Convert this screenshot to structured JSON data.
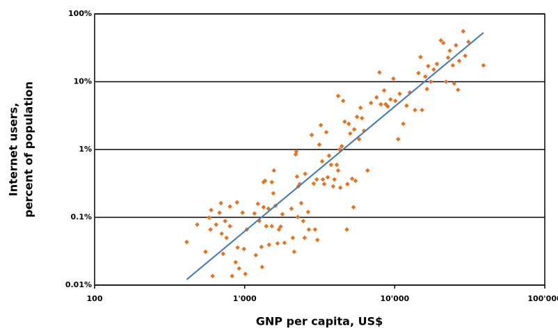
{
  "chart_data": {
    "type": "scatter",
    "xlabel": "GNP per capita, US$",
    "ylabel": [
      "Internet users,",
      "percent of population"
    ],
    "xscale": "log",
    "yscale": "log",
    "grid": true,
    "xlim": [
      100,
      100000
    ],
    "xticks": [
      100,
      {
        "value": 1000,
        "label": "1'000"
      },
      {
        "value": 10000,
        "label": "10'000"
      },
      {
        "value": 100000,
        "label": "100'000"
      }
    ],
    "ylim": [
      0.01,
      100
    ],
    "yticks": [
      {
        "value": 0.01,
        "label": "0.01%"
      },
      {
        "value": 0.1,
        "label": "0.1%"
      },
      {
        "value": 1,
        "label": "1%"
      },
      {
        "value": 10,
        "label": "10%"
      },
      {
        "value": 100,
        "label": "100%"
      }
    ],
    "series": [
      {
        "type": "scatter",
        "color": "#e8731f",
        "x": [
          411,
          483,
          549,
          579,
          592,
          598,
          611,
          645,
          680,
          695,
          703,
          718,
          741,
          757,
          798,
          798,
          825,
          871,
          889,
          898,
          918,
          968,
          989,
          1010,
          1033,
          1162,
          1187,
          1225,
          1252,
          1294,
          1307,
          1336,
          1336,
          1366,
          1393,
          1439,
          1455,
          1517,
          1517,
          1552,
          1567,
          1603,
          1656,
          1690,
          1738,
          1784,
          1842,
          2050,
          2093,
          2137,
          2187,
          2208,
          2233,
          2257,
          2281,
          2330,
          2382,
          2455,
          2510,
          2530,
          2649,
          2677,
          2799,
          2884,
          2945,
          3020,
          3054,
          3146,
          3219,
          3283,
          3318,
          3388,
          3499,
          3575,
          3652,
          3767,
          3890,
          3966,
          4106,
          4198,
          4198,
          4290,
          4340,
          4435,
          4533,
          4636,
          4794,
          4840,
          4940,
          5050,
          5200,
          5310,
          5370,
          5480,
          5610,
          5790,
          5920,
          6050,
          6250,
          6590,
          6950,
          7570,
          7910,
          8080,
          8500,
          8700,
          9000,
          9370,
          9800,
          10100,
          10550,
          10800,
          11400,
          12000,
          12600,
          13650,
          14400,
          14860,
          15200,
          16000,
          16400,
          16700,
          17400,
          18200,
          19100,
          20300,
          21100,
          22000,
          22700,
          23300,
          24400,
          24900,
          25600,
          26400,
          26900,
          28600,
          29500,
          31000,
          39000
        ],
        "values": [
          0.0433,
          0.078,
          0.031,
          0.099,
          0.066,
          0.128,
          0.0136,
          0.078,
          0.117,
          0.162,
          0.0574,
          0.029,
          0.088,
          0.0498,
          0.144,
          0.074,
          0.0136,
          0.0218,
          0.166,
          0.0358,
          0.0176,
          0.117,
          0.0341,
          0.0146,
          0.066,
          0.114,
          0.0276,
          0.158,
          0.088,
          0.0366,
          0.0185,
          0.141,
          0.33,
          0.346,
          0.074,
          0.134,
          0.0394,
          0.33,
          0.074,
          0.226,
          0.49,
          0.148,
          0.0412,
          0.066,
          0.073,
          0.111,
          0.042,
          0.134,
          0.0498,
          0.031,
          0.847,
          0.93,
          0.398,
          0.101,
          0.286,
          0.309,
          0.162,
          0.088,
          0.0498,
          0.437,
          0.12,
          0.066,
          1.64,
          0.314,
          0.066,
          0.362,
          0.0464,
          1.18,
          2.29,
          0.67,
          0.362,
          0.309,
          1.8,
          0.389,
          0.81,
          0.594,
          0.286,
          0.362,
          0.594,
          6.17,
          0.49,
          1.0,
          0.273,
          1.12,
          5.22,
          2.57,
          0.066,
          0.309,
          2.39,
          1.72,
          0.371,
          0.141,
          1.98,
          0.346,
          3.03,
          1.42,
          4.12,
          2.9,
          1.89,
          0.49,
          4.86,
          5.88,
          13.7,
          4.64,
          7.44,
          4.64,
          4.3,
          5.47,
          11.1,
          5.22,
          1.42,
          6.62,
          2.39,
          4.43,
          6.93,
          3.82,
          13.4,
          23.1,
          3.82,
          11.9,
          7.8,
          17.0,
          10.0,
          15.1,
          18.3,
          40.7,
          37.2,
          10.0,
          22.6,
          28.6,
          17.4,
          9.4,
          34.5,
          7.6,
          20.3,
          55.4,
          24.1,
          38.7,
          17.4
        ]
      },
      {
        "type": "line",
        "color": "#4a7ebb",
        "x": [
          411,
          39000
        ],
        "values": [
          0.0121,
          52.8
        ]
      }
    ]
  }
}
